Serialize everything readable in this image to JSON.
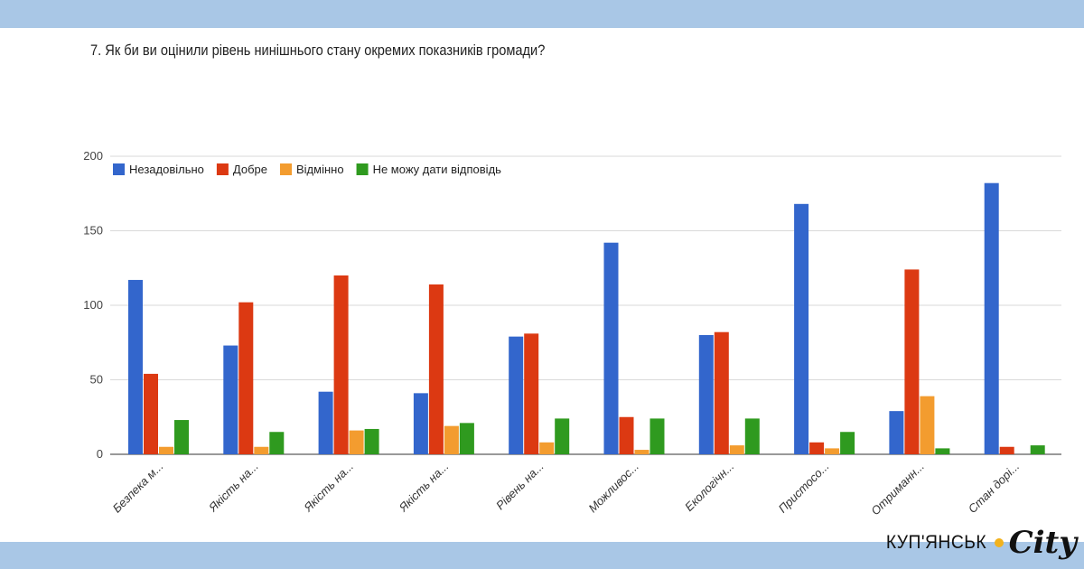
{
  "title": "7. Як би ви оцінили рівень нинішнього стану окремих показників громади?",
  "brand": {
    "name": "КУП'ЯНСЬК",
    "suffix": "City"
  },
  "colors": {
    "band": "#a9c7e6",
    "accent": "#f2b21d"
  },
  "chart_data": {
    "type": "bar",
    "title": "7. Як би ви оцінили рівень нинішнього стану окремих показників громади?",
    "xlabel": "",
    "ylabel": "",
    "ylim": [
      0,
      200
    ],
    "yticks": [
      0,
      50,
      100,
      150,
      200
    ],
    "grid": true,
    "legend_position": "top-left",
    "categories": [
      "Безпека м...",
      "Якість на...",
      "Якість на...",
      "Якість на...",
      "Рівень на...",
      "Можливос...",
      "Екологічн...",
      "Пристосо...",
      "Отриманн...",
      "Стан дорі..."
    ],
    "series": [
      {
        "name": "Незадовільно",
        "color": "#3366cc",
        "values": [
          117,
          73,
          42,
          41,
          79,
          142,
          80,
          168,
          29,
          182
        ]
      },
      {
        "name": "Добре",
        "color": "#dc3912",
        "values": [
          54,
          102,
          120,
          114,
          81,
          25,
          82,
          8,
          124,
          5
        ]
      },
      {
        "name": "Відмінно",
        "color": "#f39c2f",
        "values": [
          5,
          5,
          16,
          19,
          8,
          3,
          6,
          4,
          39,
          0
        ]
      },
      {
        "name": "Не можу дати відповідь",
        "color": "#2f9a1f",
        "values": [
          23,
          15,
          17,
          21,
          24,
          24,
          24,
          15,
          4,
          6
        ]
      }
    ]
  }
}
